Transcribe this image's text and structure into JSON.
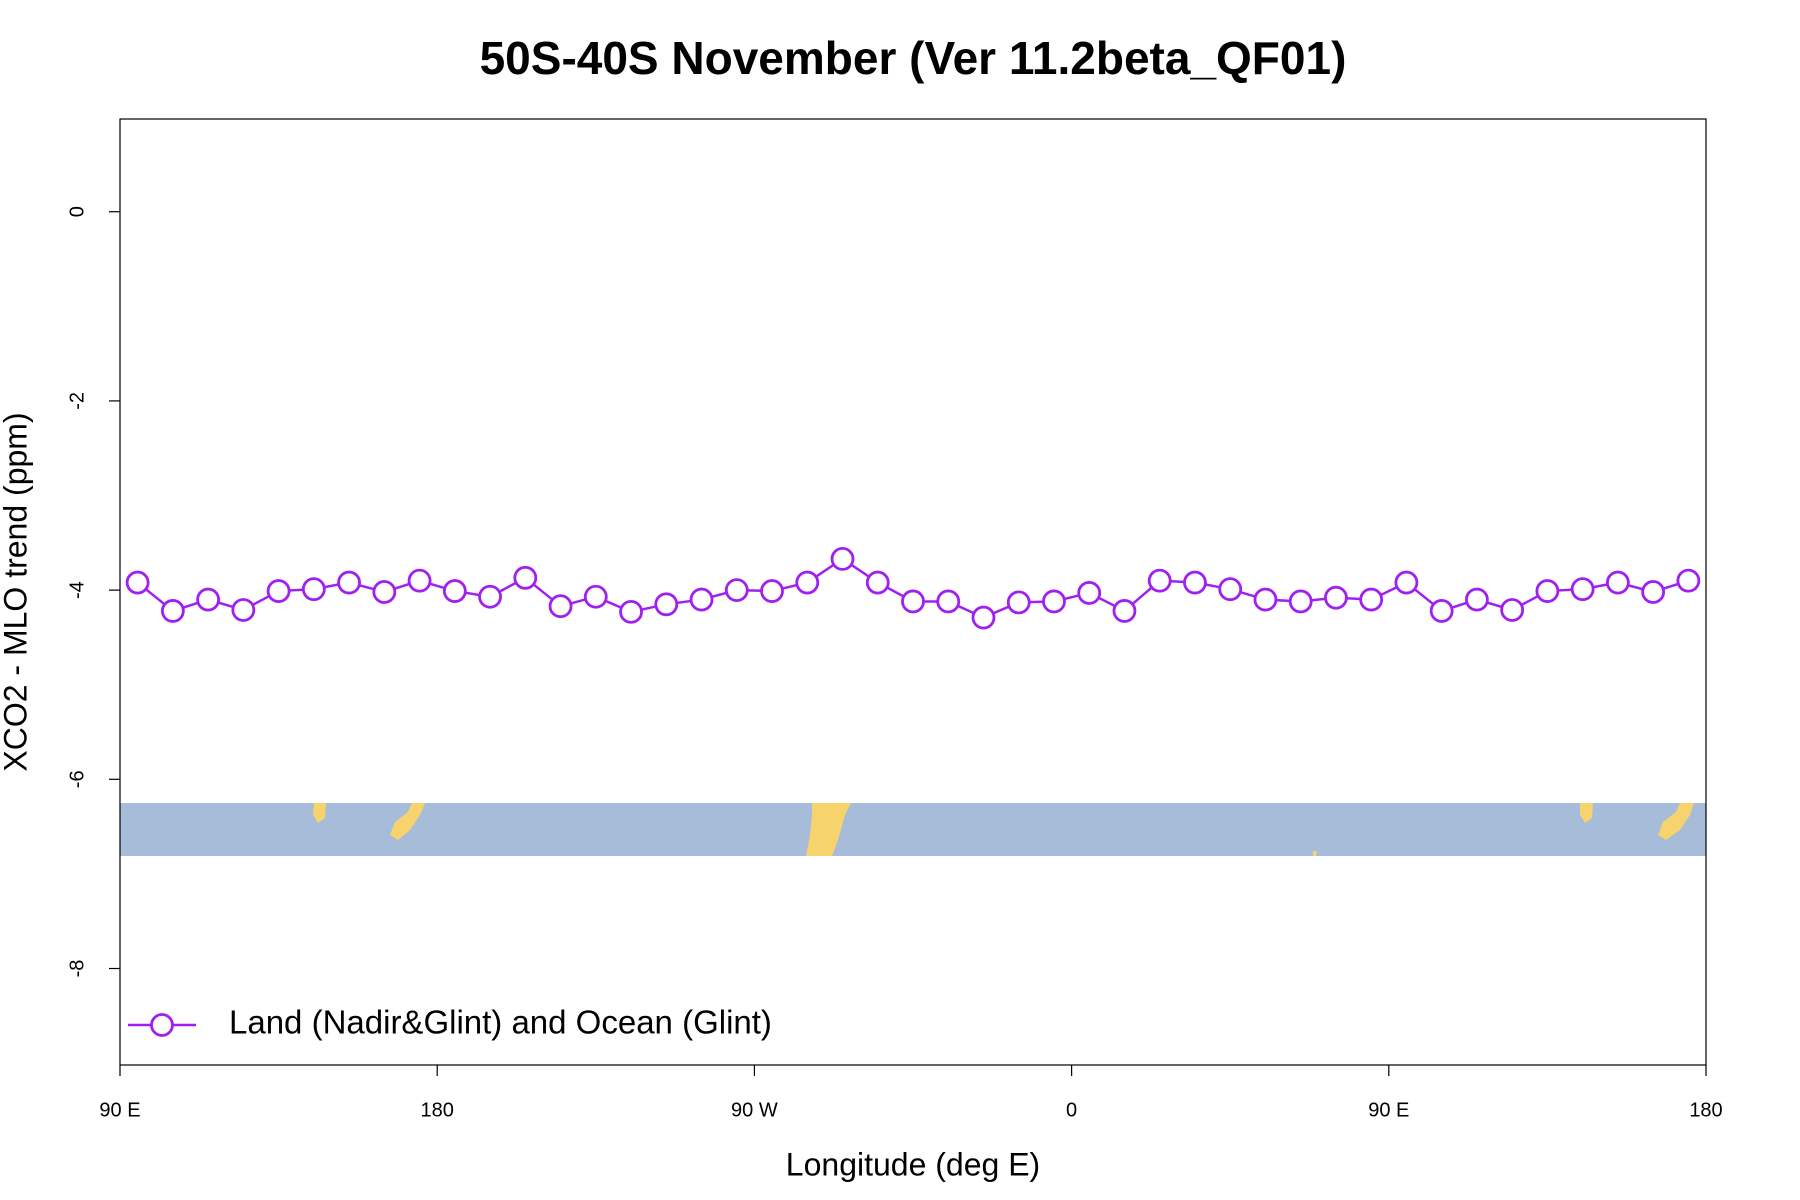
{
  "chart_data": {
    "type": "line",
    "title": "50S-40S November (Ver 11.2beta_QF01)",
    "x_label": "Longitude (deg E)",
    "y_label": "XCO2 - MLO trend (ppm)",
    "x": [
      95,
      105,
      115,
      125,
      135,
      145,
      155,
      165,
      175,
      185,
      195,
      205,
      215,
      225,
      235,
      245,
      255,
      265,
      275,
      285,
      295,
      305,
      315,
      325,
      335,
      345,
      355,
      365,
      375,
      385,
      395,
      405,
      415,
      425,
      435,
      445,
      455,
      465,
      475,
      485,
      495,
      505,
      515,
      525,
      535
    ],
    "series": [
      {
        "name": "Land (Nadir&Glint) and Ocean (Glint)",
        "color": "#a020f0",
        "values": [
          -3.92,
          -4.22,
          -4.1,
          -4.21,
          -4.01,
          -3.99,
          -3.92,
          -4.02,
          -3.9,
          -4.01,
          -4.07,
          -3.87,
          -4.17,
          -4.07,
          -4.23,
          -4.15,
          -4.1,
          -4.0,
          -4.01,
          -3.92,
          -3.67,
          -3.92,
          -4.12,
          -4.12,
          -4.29,
          -4.13,
          -4.12,
          -4.03,
          -4.22,
          -3.9,
          -3.92,
          -3.99,
          -4.1,
          -4.12,
          -4.08,
          -4.1,
          -3.92,
          -4.22,
          -4.1,
          -4.21,
          -4.01,
          -3.99,
          -3.92,
          -4.02,
          -3.9
        ]
      }
    ],
    "xlim": [
      90,
      540
    ],
    "xticks": [
      {
        "value": 90,
        "label": "90 E"
      },
      {
        "value": 180,
        "label": "180"
      },
      {
        "value": 270,
        "label": "90 W"
      },
      {
        "value": 360,
        "label": "0"
      },
      {
        "value": 450,
        "label": "90 E"
      },
      {
        "value": 540,
        "label": "180"
      }
    ],
    "ylim": [
      -9.02,
      0.98
    ],
    "yticks": [
      0,
      -2,
      -4,
      -6,
      -8
    ],
    "legend": "bottomleft",
    "grid": false
  }
}
